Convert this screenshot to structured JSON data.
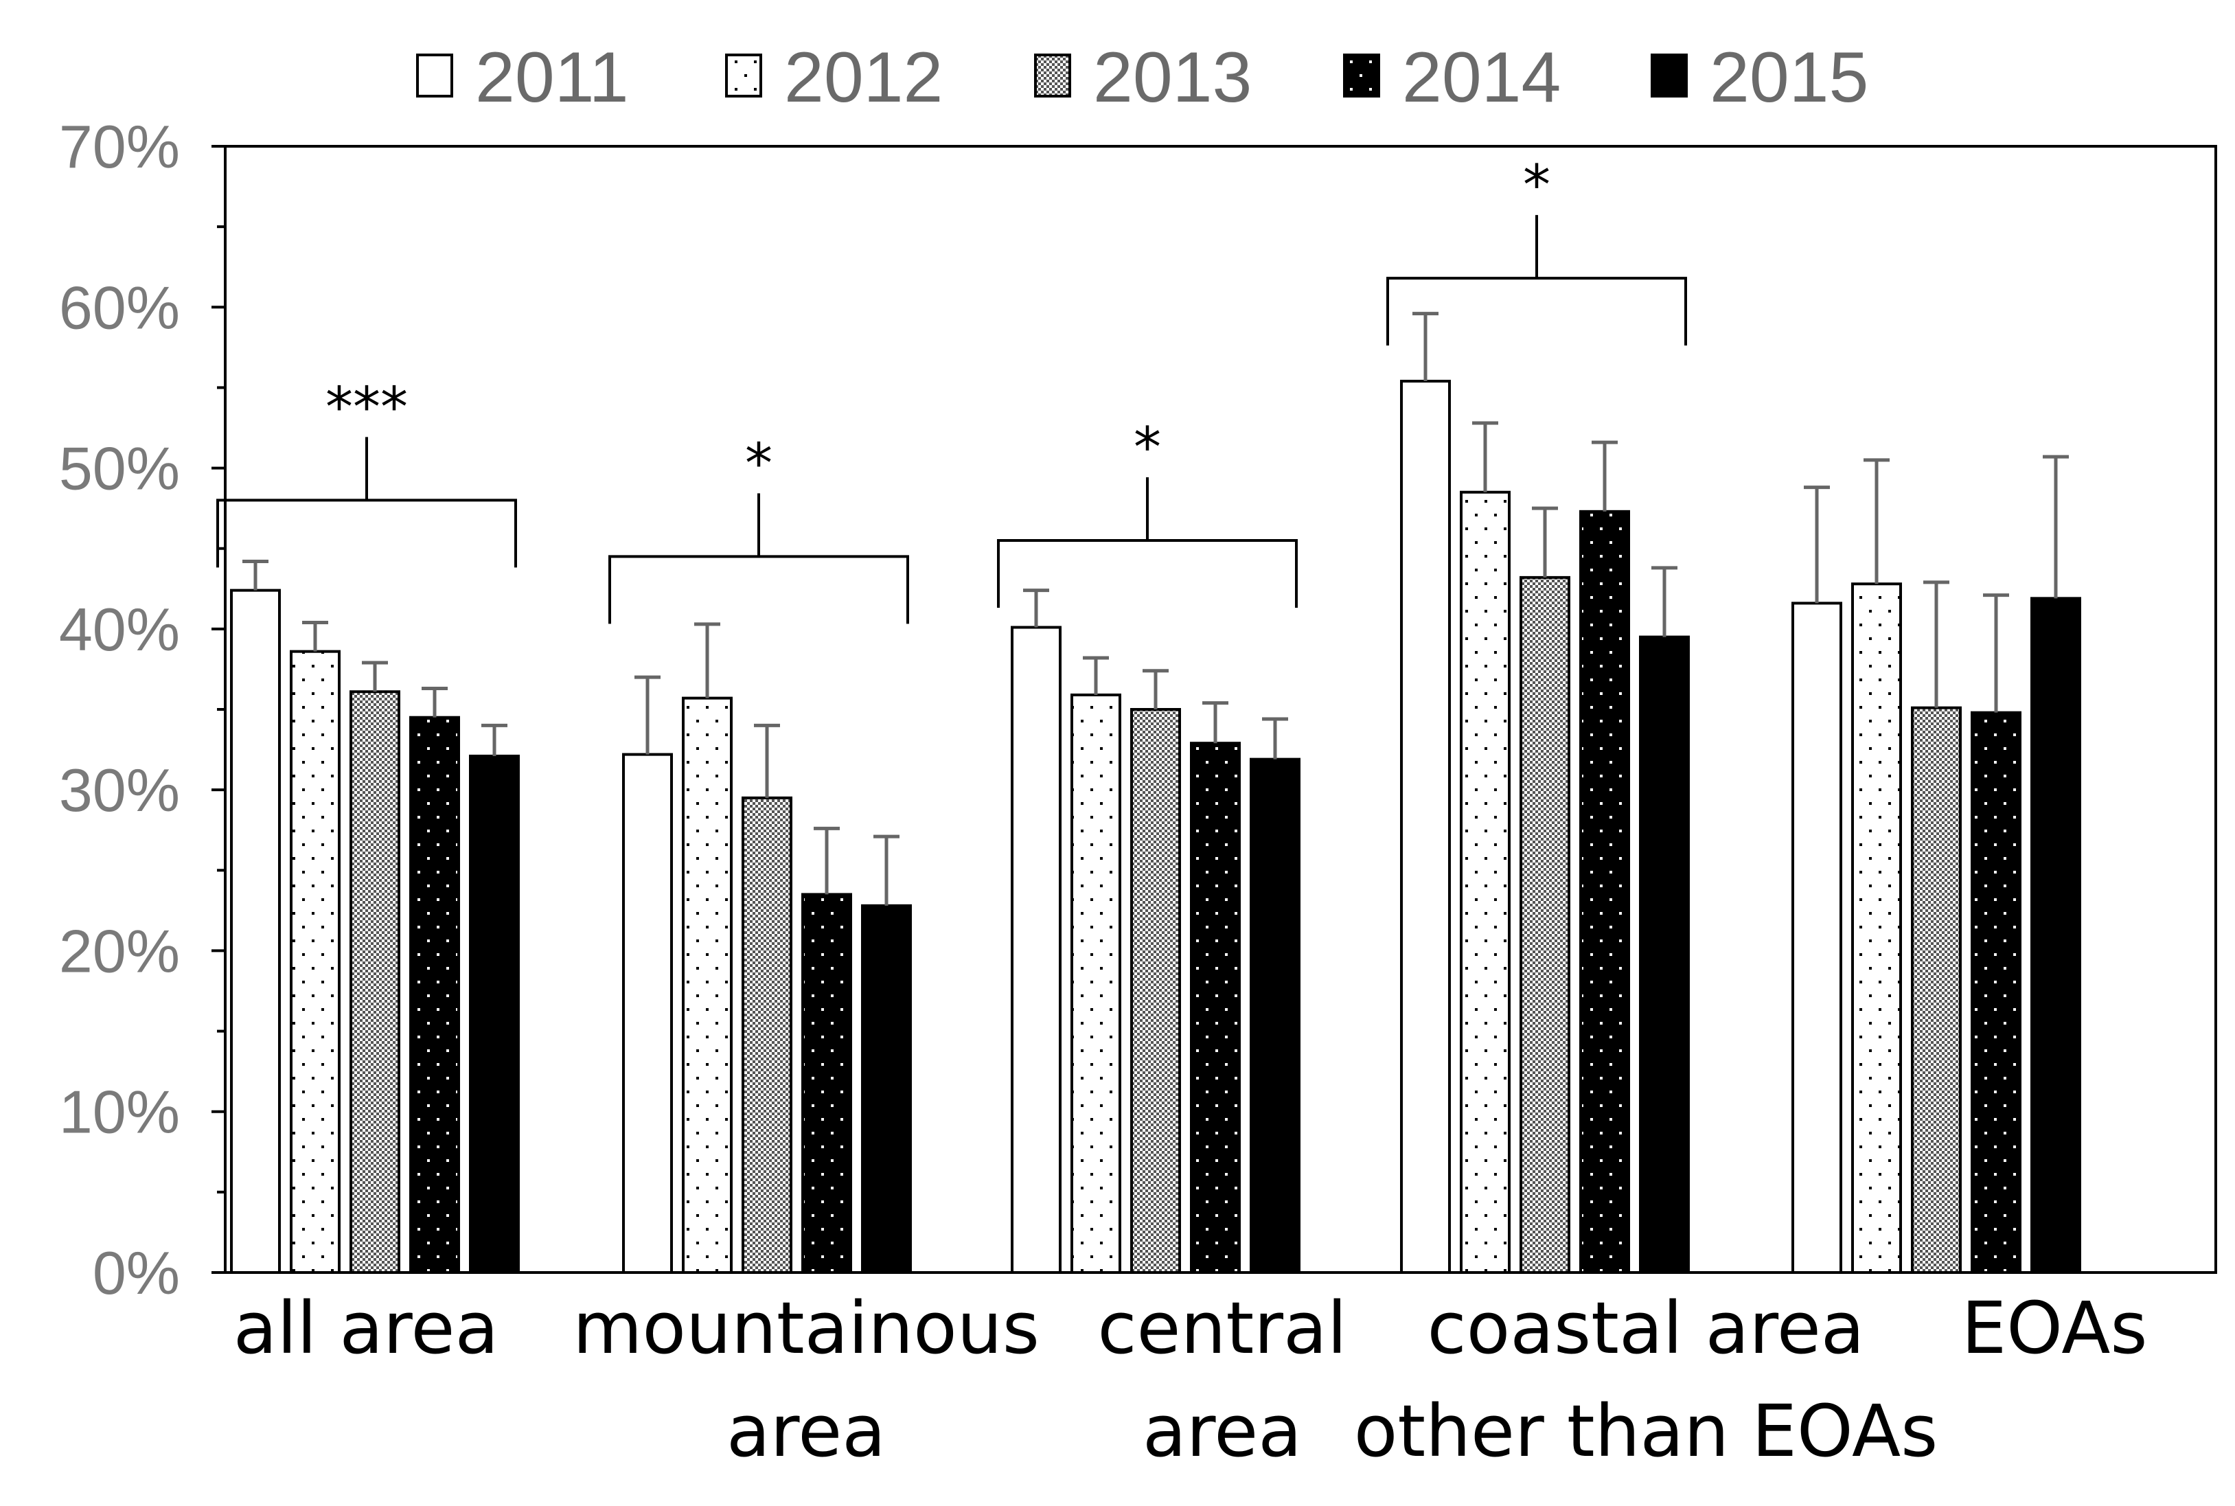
{
  "chart_data": {
    "type": "bar",
    "title": "",
    "xlabel": "",
    "ylabel": "",
    "ylim": [
      0,
      0.7
    ],
    "yticks": [
      0,
      0.1,
      0.2,
      0.3,
      0.4,
      0.5,
      0.6,
      0.7
    ],
    "ytick_labels": [
      "0%",
      "10%",
      "20%",
      "30%",
      "40%",
      "50%",
      "60%",
      "70%"
    ],
    "legend_position": "top",
    "categories": [
      [
        "all area"
      ],
      [
        "mountainous",
        "area"
      ],
      [
        "central",
        "area"
      ],
      [
        "coastal area",
        "other than EOAs"
      ],
      [
        "EOAs"
      ]
    ],
    "series": [
      {
        "name": "2011",
        "pattern": "white",
        "values": [
          0.424,
          0.322,
          0.401,
          0.554,
          0.416
        ],
        "errors": [
          0.018,
          0.048,
          0.023,
          0.042,
          0.072
        ]
      },
      {
        "name": "2012",
        "pattern": "dots-light",
        "values": [
          0.386,
          0.357,
          0.359,
          0.485,
          0.428
        ],
        "errors": [
          0.018,
          0.046,
          0.023,
          0.043,
          0.077
        ]
      },
      {
        "name": "2013",
        "pattern": "checker",
        "values": [
          0.361,
          0.295,
          0.35,
          0.432,
          0.351
        ],
        "errors": [
          0.018,
          0.045,
          0.024,
          0.043,
          0.078
        ]
      },
      {
        "name": "2014",
        "pattern": "dots-dark",
        "values": [
          0.345,
          0.235,
          0.329,
          0.473,
          0.348
        ],
        "errors": [
          0.018,
          0.041,
          0.025,
          0.043,
          0.073
        ]
      },
      {
        "name": "2015",
        "pattern": "black",
        "values": [
          0.321,
          0.228,
          0.319,
          0.395,
          0.419
        ],
        "errors": [
          0.019,
          0.043,
          0.025,
          0.043,
          0.088
        ]
      }
    ],
    "significance": [
      {
        "category_index": 0,
        "label": "***",
        "level": 0.48
      },
      {
        "category_index": 1,
        "label": "*",
        "level": 0.445
      },
      {
        "category_index": 2,
        "label": "*",
        "level": 0.455
      },
      {
        "category_index": 3,
        "label": "*",
        "level": 0.618
      }
    ]
  }
}
